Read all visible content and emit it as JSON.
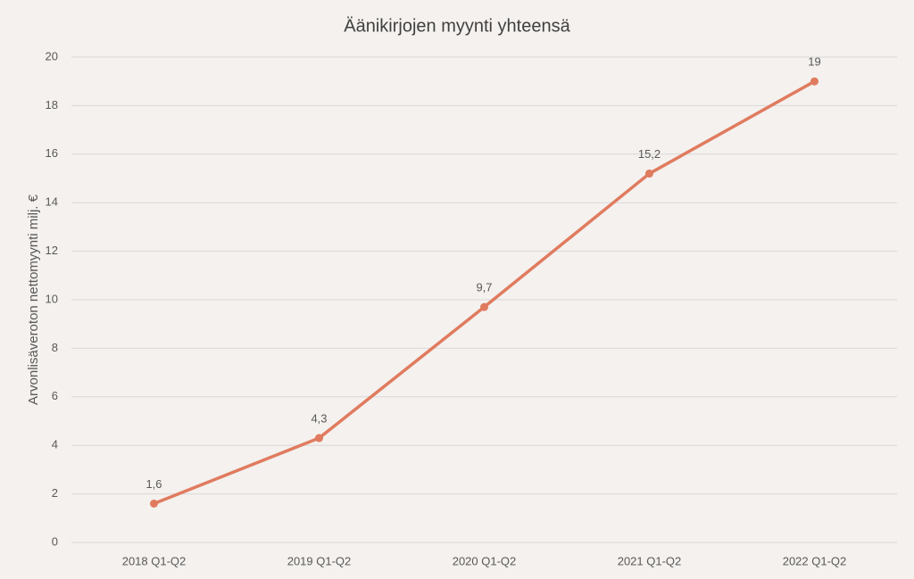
{
  "chart_data": {
    "type": "line",
    "title": "Äänikirjojen myynti yhteensä",
    "y_label": "Arvonlisäveroton nettomyynti milj. €",
    "categories": [
      "2018 Q1-Q2",
      "2019 Q1-Q2",
      "2020 Q1-Q2",
      "2021 Q1-Q2",
      "2022 Q1-Q2"
    ],
    "values": [
      1.6,
      4.3,
      9.7,
      15.2,
      19
    ],
    "value_labels": [
      "1,6",
      "4,3",
      "9,7",
      "15,2",
      "19"
    ],
    "color": "#e07b5f",
    "ylim": [
      0,
      20
    ],
    "yticks": [
      0,
      2,
      4,
      6,
      8,
      10,
      12,
      14,
      16,
      18,
      20
    ],
    "grid": true
  }
}
